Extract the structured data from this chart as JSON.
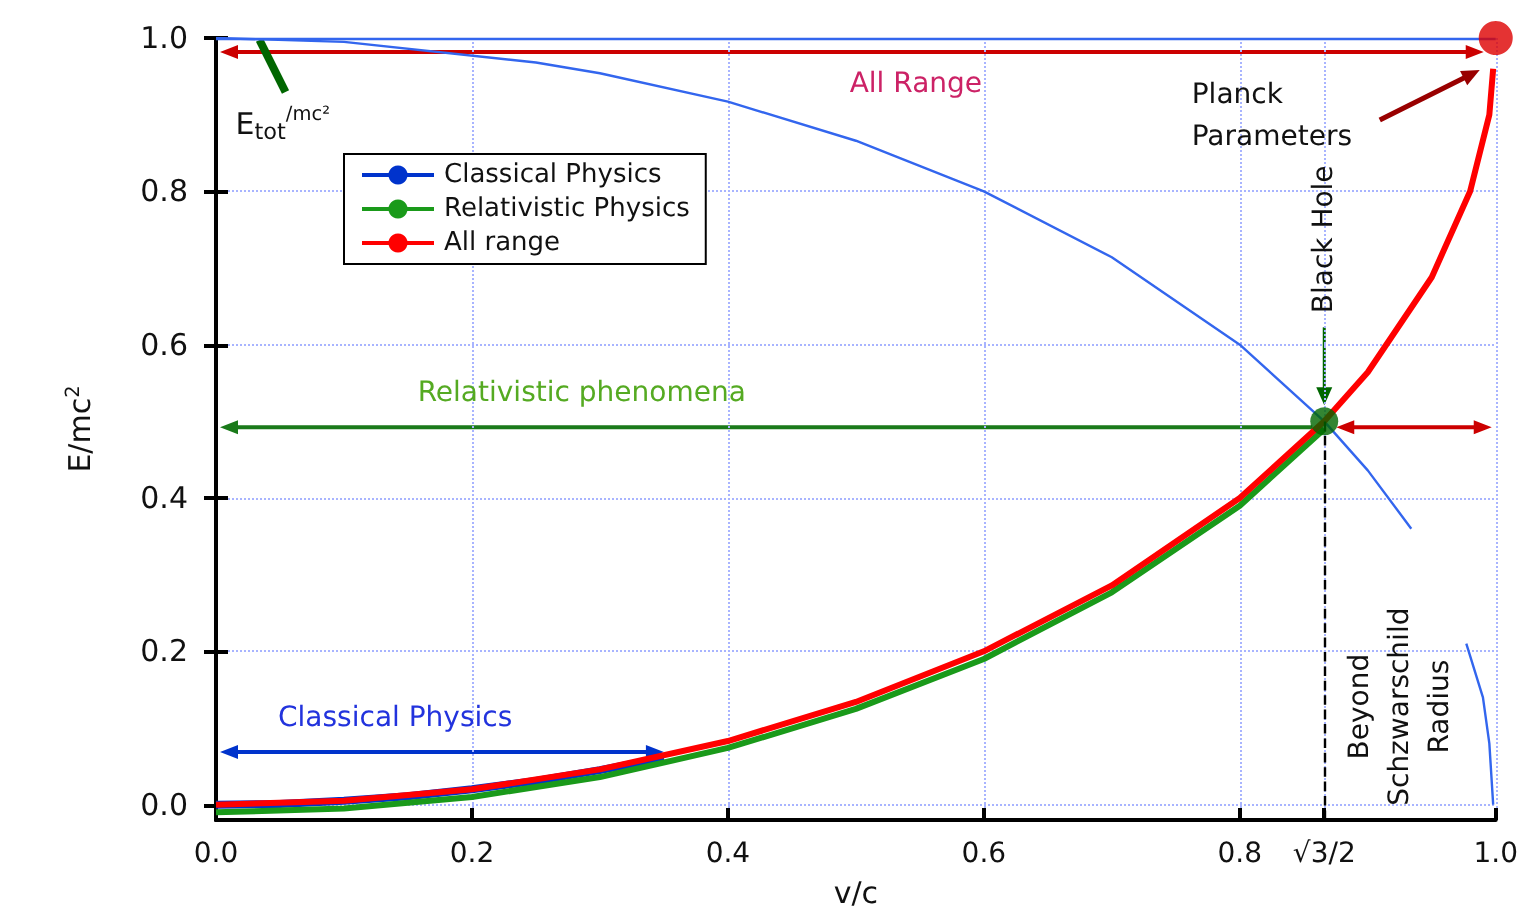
{
  "chart_data": {
    "type": "line",
    "xlabel": "v/c",
    "ylabel": "E/mc$^{2}$",
    "xlim": [
      0,
      1.0
    ],
    "ylim": [
      -0.02,
      1.0
    ],
    "xticks": [
      {
        "value": 0,
        "label": "0.0"
      },
      {
        "value": 0.2,
        "label": "0.2"
      },
      {
        "value": 0.4,
        "label": "0.4"
      },
      {
        "value": 0.6,
        "label": "0.6"
      },
      {
        "value": 0.8,
        "label": "0.8"
      },
      {
        "value": 0.866,
        "label": "√3/2"
      },
      {
        "value": 1.0,
        "label": "1.0"
      }
    ],
    "yticks": [
      {
        "value": 0,
        "label": "0.0"
      },
      {
        "value": 0.2,
        "label": "0.2"
      },
      {
        "value": 0.4,
        "label": "0.4"
      },
      {
        "value": 0.6,
        "label": "0.6"
      },
      {
        "value": 0.8,
        "label": "0.8"
      },
      {
        "value": 1.0,
        "label": "1.0"
      }
    ],
    "grid": true,
    "legend": "top left",
    "marker": "none",
    "line_style": "solid",
    "series": [
      {
        "name": "Classical Physics",
        "color": "#0033cc",
        "x": [
          0,
          0.05,
          0.1,
          0.15,
          0.2,
          0.25,
          0.3,
          0.35
        ],
        "values": [
          0,
          0.001,
          0.005,
          0.011,
          0.02,
          0.031,
          0.045,
          0.061
        ]
      },
      {
        "name": "Relativistic Physics",
        "color": "#1a9a1a",
        "x": [
          0,
          0.1,
          0.2,
          0.3,
          0.4,
          0.5,
          0.6,
          0.7,
          0.8,
          0.866
        ],
        "values": [
          -0.01,
          -0.005,
          0.01,
          0.036,
          0.074,
          0.125,
          0.19,
          0.277,
          0.39,
          0.49
        ]
      },
      {
        "name": "All range",
        "color": "#ff0000",
        "x": [
          0,
          0.1,
          0.2,
          0.3,
          0.4,
          0.5,
          0.6,
          0.7,
          0.8,
          0.866,
          0.9,
          0.95,
          0.98,
          0.995,
          0.998
        ],
        "values": [
          0,
          0.005,
          0.02,
          0.046,
          0.083,
          0.134,
          0.2,
          0.286,
          0.4,
          0.5,
          0.564,
          0.688,
          0.8,
          0.9,
          0.96
        ]
      },
      {
        "color": "#3366ee",
        "x": [
          0,
          0.1,
          0.25,
          0.3,
          0.4,
          0.5,
          0.6,
          0.7,
          0.8,
          0.866,
          0.9,
          0.934,
          0.955,
          0.977,
          0.99,
          0.995,
          0.998
        ],
        "values": [
          1,
          0.995,
          0.968,
          0.954,
          0.917,
          0.866,
          0.8,
          0.714,
          0.6,
          0.5,
          0.436,
          0.36,
          null,
          0.21,
          0.14,
          0.08,
          0
        ]
      },
      {
        "type": "scatter",
        "marker": "circle",
        "colors": [
          "#006600",
          "#dd0000"
        ],
        "x": [
          0.866,
          1.0
        ],
        "values": [
          0.5,
          1.0
        ]
      }
    ],
    "ref_lines": [
      {
        "axis": "y",
        "value": 1.0,
        "color": "#3366ee"
      },
      {
        "axis": "x",
        "value": 0.866,
        "color": "#000000",
        "line_style": "dashed"
      }
    ],
    "annotations": [
      "All Range",
      "Relativistic phenomena",
      "Classical Physics",
      {
        "text": "E$_{tot}$$^{/mc²}$",
        "x": 0.034,
        "y": 1.0
      },
      "Black Hole",
      "Planck Parameters",
      {
        "text": "Beyond Schzwarschild Radius",
        "x": 0.93,
        "y": 0.36
      }
    ]
  }
}
